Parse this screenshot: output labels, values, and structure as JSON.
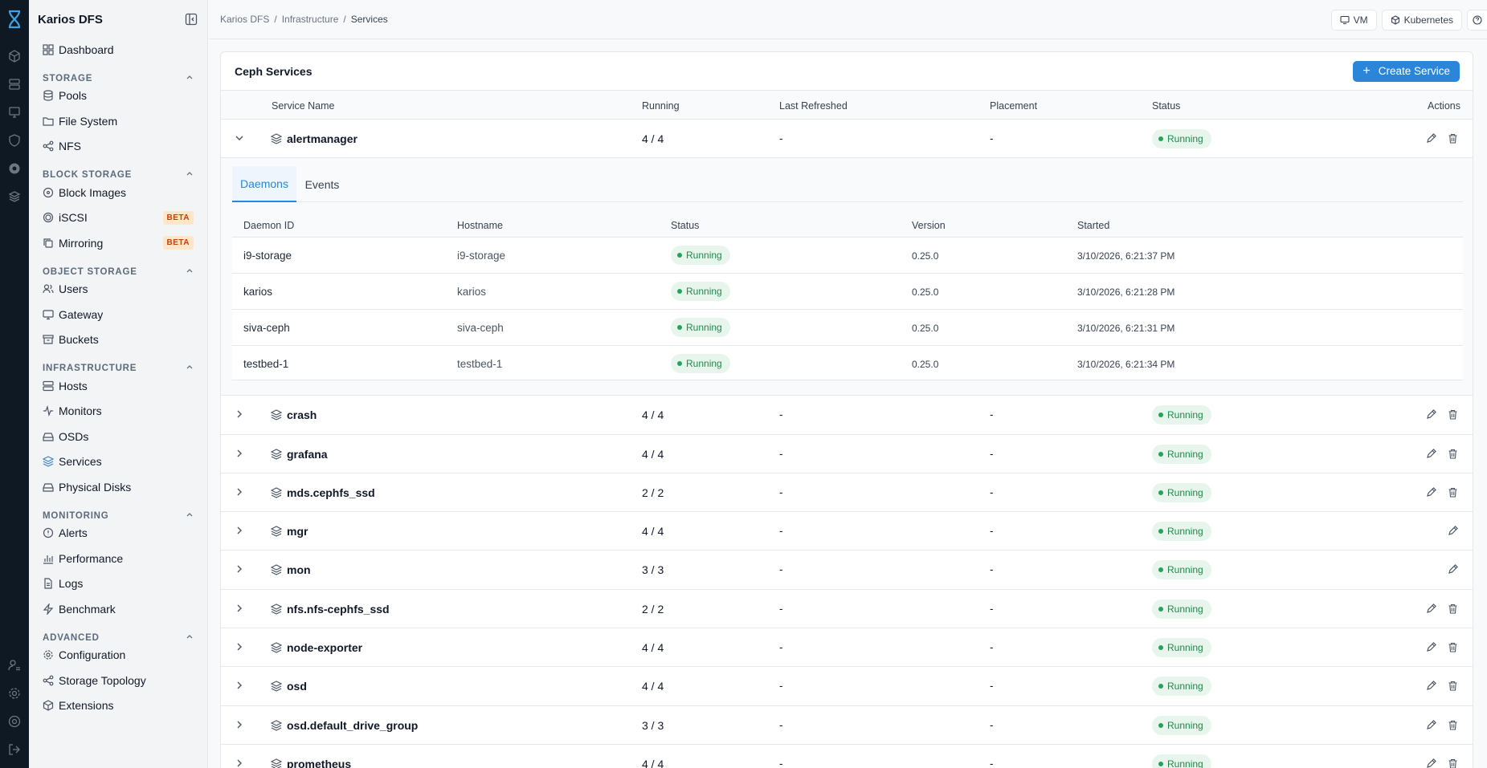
{
  "app": {
    "title": "Karios DFS"
  },
  "breadcrumb": [
    "Karios DFS",
    "Infrastructure",
    "Services"
  ],
  "topbar": {
    "vm_label": "VM",
    "kubernetes_label": "Kubernetes"
  },
  "sidebar": {
    "dashboard": "Dashboard",
    "sections": {
      "storage": {
        "label": "STORAGE",
        "items": [
          "Pools",
          "File System",
          "NFS"
        ]
      },
      "block": {
        "label": "BLOCK STORAGE",
        "items": [
          "Block Images",
          "iSCSI",
          "Mirroring"
        ],
        "beta": "BETA"
      },
      "object": {
        "label": "OBJECT STORAGE",
        "items": [
          "Users",
          "Gateway",
          "Buckets"
        ]
      },
      "infra": {
        "label": "INFRASTRUCTURE",
        "items": [
          "Hosts",
          "Monitors",
          "OSDs",
          "Services",
          "Physical Disks"
        ]
      },
      "monitoring": {
        "label": "MONITORING",
        "items": [
          "Alerts",
          "Performance",
          "Logs",
          "Benchmark"
        ]
      },
      "advanced": {
        "label": "ADVANCED",
        "items": [
          "Configuration",
          "Storage Topology",
          "Extensions"
        ]
      }
    }
  },
  "panel": {
    "title": "Ceph Services",
    "create_label": "Create Service",
    "columns": [
      "Service Name",
      "Running",
      "Last Refreshed",
      "Placement",
      "Status",
      "Actions"
    ]
  },
  "services": [
    {
      "name": "alertmanager",
      "running": "4 / 4",
      "refreshed": "-",
      "placement": "-",
      "status": "Running"
    },
    {
      "name": "crash",
      "running": "4 / 4",
      "refreshed": "-",
      "placement": "-",
      "status": "Running"
    },
    {
      "name": "grafana",
      "running": "4 / 4",
      "refreshed": "-",
      "placement": "-",
      "status": "Running"
    },
    {
      "name": "mds.cephfs_ssd",
      "running": "2 / 2",
      "refreshed": "-",
      "placement": "-",
      "status": "Running"
    },
    {
      "name": "mgr",
      "running": "4 / 4",
      "refreshed": "-",
      "placement": "-",
      "status": "Running"
    },
    {
      "name": "mon",
      "running": "3 / 3",
      "refreshed": "-",
      "placement": "-",
      "status": "Running"
    },
    {
      "name": "nfs.nfs-cephfs_ssd",
      "running": "2 / 2",
      "refreshed": "-",
      "placement": "-",
      "status": "Running"
    },
    {
      "name": "node-exporter",
      "running": "4 / 4",
      "refreshed": "-",
      "placement": "-",
      "status": "Running"
    },
    {
      "name": "osd",
      "running": "4 / 4",
      "refreshed": "-",
      "placement": "-",
      "status": "Running"
    },
    {
      "name": "osd.default_drive_group",
      "running": "3 / 3",
      "refreshed": "-",
      "placement": "-",
      "status": "Running"
    },
    {
      "name": "prometheus",
      "running": "4 / 4",
      "refreshed": "-",
      "placement": "-",
      "status": "Running"
    }
  ],
  "expanded": {
    "tabs": [
      "Daemons",
      "Events"
    ],
    "columns": [
      "Daemon ID",
      "Hostname",
      "Status",
      "Version",
      "Started"
    ],
    "daemons": [
      {
        "id": "i9-storage",
        "host": "i9-storage",
        "status": "Running",
        "version": "0.25.0",
        "started": "3/10/2026, 6:21:37 PM"
      },
      {
        "id": "karios",
        "host": "karios",
        "status": "Running",
        "version": "0.25.0",
        "started": "3/10/2026, 6:21:28 PM"
      },
      {
        "id": "siva-ceph",
        "host": "siva-ceph",
        "status": "Running",
        "version": "0.25.0",
        "started": "3/10/2026, 6:21:31 PM"
      },
      {
        "id": "testbed-1",
        "host": "testbed-1",
        "status": "Running",
        "version": "0.25.0",
        "started": "3/10/2026, 6:21:34 PM"
      }
    ]
  }
}
